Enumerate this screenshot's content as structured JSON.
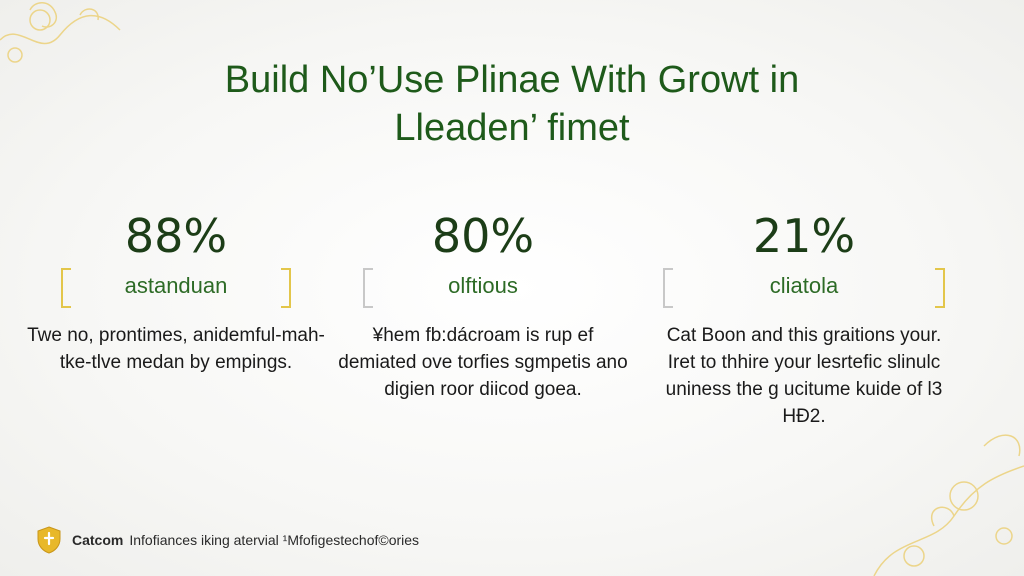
{
  "title": {
    "line1": "Build No’Use Plinae With Growt in",
    "line2": "Lleaden’ fimet"
  },
  "stats": [
    {
      "value": "88%",
      "label": "astanduan",
      "bracket_color": "gold",
      "description": "Twe no, prontimes, anidemful-mah-tke-tlve medan by empings."
    },
    {
      "value": "80%",
      "label": "olftious",
      "bracket_color": "grey",
      "description": "¥hem fb:dácroam is rup ef demiated ove torfies sgmpetis ano digien roor diicod goea."
    },
    {
      "value": "21%",
      "label": "cliatola",
      "bracket_color": "gold",
      "description": "Cat Boon and this graitions your. Iret to thhire your lesrtefic slinulc uniness the g ucitume kuide of l3 HÐ2."
    }
  ],
  "footer": {
    "brand": "Catcom",
    "text": "Infofiances iking atervial ¹Mfofigestechof©ories"
  },
  "colors": {
    "title": "#1e5a1a",
    "stat_value": "#1c3d17",
    "stat_label": "#2d6b26",
    "gold_bracket": "#e3c64a",
    "grey_bracket": "#c8c8c8",
    "shield": "#e8b82a"
  },
  "icons": [
    "shield-icon",
    "floral-decoration-icon"
  ]
}
